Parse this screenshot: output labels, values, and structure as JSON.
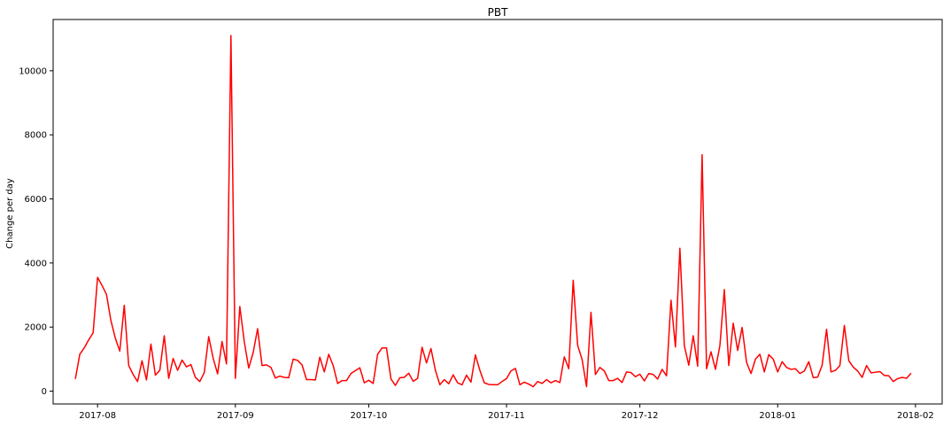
{
  "chart_data": {
    "type": "line",
    "title": "PBT",
    "xlabel": "",
    "ylabel": "Change per day",
    "xlim": [
      "2017-07-22",
      "2018-02-07"
    ],
    "ylim": [
      -400,
      11600
    ],
    "grid": false,
    "legend": "none",
    "line_color": "#ff0000",
    "x_ticks": [
      {
        "date": "2017-08-01",
        "label": "2017-08"
      },
      {
        "date": "2017-09-01",
        "label": "2017-09"
      },
      {
        "date": "2017-10-01",
        "label": "2017-10"
      },
      {
        "date": "2017-11-01",
        "label": "2017-11"
      },
      {
        "date": "2017-12-01",
        "label": "2017-12"
      },
      {
        "date": "2018-01-01",
        "label": "2018-01"
      },
      {
        "date": "2018-02-01",
        "label": "2018-02"
      }
    ],
    "y_ticks": [
      {
        "value": 0,
        "label": "0"
      },
      {
        "value": 2000,
        "label": "2000"
      },
      {
        "value": 4000,
        "label": "4000"
      },
      {
        "value": 6000,
        "label": "6000"
      },
      {
        "value": 8000,
        "label": "8000"
      },
      {
        "value": 10000,
        "label": "10000"
      }
    ],
    "series": [
      {
        "name": "",
        "start_date": "2017-07-27",
        "x_step_days": 1,
        "values": [
          380,
          1150,
          1350,
          1600,
          1820,
          3550,
          3300,
          3020,
          2200,
          1650,
          1250,
          2680,
          800,
          520,
          300,
          950,
          350,
          1470,
          500,
          650,
          1730,
          400,
          1020,
          650,
          970,
          760,
          830,
          430,
          300,
          580,
          1700,
          1030,
          540,
          1550,
          850,
          11100,
          400,
          2640,
          1550,
          720,
          1200,
          1950,
          800,
          820,
          740,
          410,
          470,
          430,
          420,
          1000,
          960,
          820,
          360,
          360,
          350,
          1060,
          600,
          1150,
          800,
          240,
          330,
          330,
          550,
          640,
          730,
          260,
          340,
          240,
          1150,
          1350,
          1350,
          380,
          180,
          420,
          430,
          560,
          310,
          400,
          1370,
          880,
          1330,
          650,
          200,
          360,
          230,
          510,
          260,
          200,
          500,
          280,
          1130,
          650,
          260,
          210,
          200,
          200,
          300,
          390,
          630,
          710,
          200,
          280,
          220,
          140,
          300,
          240,
          360,
          260,
          330,
          270,
          1070,
          700,
          3460,
          1430,
          990,
          140,
          2460,
          520,
          740,
          630,
          330,
          330,
          400,
          270,
          600,
          580,
          450,
          530,
          320,
          550,
          520,
          380,
          680,
          480,
          2840,
          1380,
          4460,
          1420,
          810,
          1730,
          780,
          7380,
          700,
          1230,
          680,
          1420,
          3170,
          800,
          2120,
          1270,
          1990,
          900,
          550,
          1000,
          1150,
          600,
          1140,
          1000,
          600,
          920,
          740,
          680,
          700,
          550,
          630,
          920,
          420,
          440,
          810,
          1930,
          600,
          650,
          800,
          2050,
          950,
          750,
          630,
          430,
          800,
          570,
          590,
          610,
          490,
          480,
          300,
          390,
          430,
          400,
          560
        ]
      }
    ]
  }
}
